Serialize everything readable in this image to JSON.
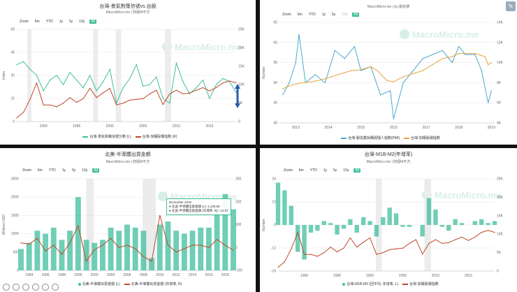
{
  "colors": {
    "green": "#3fbe9c",
    "red": "#c0482a",
    "blue": "#4aa8cf",
    "orange": "#e8a23c",
    "grid": "#e6e6e6",
    "axis": "#888"
  },
  "chart_data": [
    {
      "type": "line",
      "title": "台灣-景氣對策信號vs.台股",
      "subtitle": "MacroMicro.me | 財經M平方",
      "zoom": [
        "Zoom",
        "6m",
        "YTD",
        "1y",
        "5y",
        "10y",
        "All"
      ],
      "zoom_selected": "All",
      "ylabel_left": "Index",
      "ylabel_right": "",
      "ylim_left": [
        0,
        60
      ],
      "ylim_right": [
        0,
        25000
      ],
      "left_ticks": [
        "60",
        "45",
        "30",
        "15",
        "0"
      ],
      "right_ticks": [
        "25K",
        "20K",
        "15K",
        "10K",
        "5K",
        "0"
      ],
      "xticks": [
        "1990",
        "1995",
        "2000",
        "2005",
        "2010",
        "2015"
      ],
      "x_range": [
        1986,
        2019
      ],
      "shaded": [
        [
          1987.6,
          1988.2
        ],
        [
          1997.5,
          1998.2
        ],
        [
          2000.9,
          2001.7
        ],
        [
          2008.3,
          2009.2
        ]
      ],
      "series": [
        {
          "name": "台灣-景氣對策信號分數 (L)",
          "color": "green",
          "axis": "left",
          "x": [
            1986,
            1987,
            1988,
            1989,
            1990,
            1991,
            1992,
            1993,
            1994,
            1995,
            1996,
            1997,
            1998,
            1999,
            2000,
            2001,
            2002,
            2003,
            2004,
            2005,
            2006,
            2007,
            2008,
            2009,
            2010,
            2011,
            2012,
            2013,
            2014,
            2015,
            2016,
            2017,
            2018,
            2019
          ],
          "values": [
            37,
            39,
            34,
            30,
            20,
            27,
            30,
            24,
            32,
            27,
            22,
            30,
            20,
            26,
            34,
            12,
            22,
            28,
            37,
            23,
            24,
            29,
            15,
            12,
            38,
            26,
            18,
            22,
            27,
            15,
            24,
            28,
            26,
            19
          ]
        },
        {
          "name": "台灣-加權股價指數 (R)",
          "color": "red",
          "axis": "right",
          "x": [
            1986,
            1987,
            1988,
            1989,
            1990,
            1991,
            1992,
            1993,
            1994,
            1995,
            1996,
            1997,
            1998,
            1999,
            2000,
            2001,
            2002,
            2003,
            2004,
            2005,
            2006,
            2007,
            2008,
            2009,
            2010,
            2011,
            2012,
            2013,
            2014,
            2015,
            2016,
            2017,
            2018,
            2019
          ],
          "values": [
            1000,
            2500,
            6000,
            10500,
            4500,
            4500,
            4000,
            5000,
            6500,
            5200,
            6200,
            9000,
            6500,
            7800,
            9000,
            4500,
            5000,
            5800,
            6000,
            6200,
            7500,
            8500,
            4600,
            7500,
            8500,
            7500,
            7700,
            8500,
            9200,
            8300,
            9200,
            10500,
            11000,
            10500
          ]
        }
      ],
      "legend": [
        "台灣-景氣對策信號分數 (L)",
        "台灣-加權股價指數 (R)"
      ]
    },
    {
      "type": "line",
      "title": "",
      "subtitle": "MacroMicro.me | by 劉宗德",
      "zoom": [
        "Zoom",
        "6m",
        "YTD",
        "1y",
        "5y",
        "10y",
        "All"
      ],
      "zoom_selected": "All",
      "ylabel_left": "Number",
      "ylim_left": [
        40,
        65
      ],
      "ylim_right": [
        4000,
        14000
      ],
      "left_ticks": [
        "65",
        "60",
        "55",
        "50",
        "45",
        "40"
      ],
      "right_ticks": [
        "14K",
        "12K",
        "10K",
        "8K",
        "6K",
        "4K"
      ],
      "xticks": [
        "2013",
        "2014",
        "2015",
        "2016",
        "2017",
        "2018",
        "2019"
      ],
      "x_range": [
        2012.5,
        2019.1
      ],
      "series": [
        {
          "name": "台灣-製造業採購經理人指數(PMI)",
          "color": "blue",
          "axis": "left",
          "x": [
            2012.6,
            2012.8,
            2013.0,
            2013.1,
            2013.3,
            2013.6,
            2013.9,
            2014.2,
            2014.5,
            2014.8,
            2015.0,
            2015.3,
            2015.6,
            2015.9,
            2016.0,
            2016.3,
            2016.6,
            2016.9,
            2017.2,
            2017.5,
            2017.8,
            2018.0,
            2018.2,
            2018.5,
            2018.7,
            2018.9,
            2019.0
          ],
          "values": [
            47,
            50,
            55,
            62,
            50,
            52,
            50,
            58,
            56,
            59,
            53,
            54,
            47,
            48,
            41,
            50,
            53,
            56,
            57,
            58,
            55,
            59,
            57,
            57,
            53,
            45,
            48
          ]
        },
        {
          "name": "台灣-加權股價指數",
          "color": "orange",
          "axis": "right",
          "x": [
            2012.6,
            2012.9,
            2013.2,
            2013.5,
            2013.8,
            2014.1,
            2014.4,
            2014.7,
            2015.0,
            2015.3,
            2015.5,
            2015.8,
            2016.0,
            2016.3,
            2016.6,
            2016.9,
            2017.2,
            2017.5,
            2017.8,
            2018.0,
            2018.2,
            2018.5,
            2018.8,
            2018.9,
            2019.0
          ],
          "values": [
            7400,
            7800,
            8000,
            8100,
            8300,
            8600,
            8900,
            9200,
            9300,
            9600,
            9200,
            8200,
            8100,
            8600,
            8900,
            9200,
            9800,
            10400,
            10600,
            10900,
            10900,
            10900,
            10600,
            9800,
            10000
          ]
        }
      ],
      "legend": [
        "台灣-製造業採購經理人指數(PMI)",
        "台灣-加權股價指數"
      ]
    },
    {
      "type": "bar",
      "title": "北美-半導體出貨金額",
      "subtitle": "MacroMicro.me | 財經M平方",
      "zoom": [
        "Zoom",
        "6m",
        "YTD",
        "1y",
        "5y",
        "10y",
        "All"
      ],
      "zoom_selected": "All",
      "ylabel_left": "Millions USD",
      "ylim_left": [
        0,
        3000
      ],
      "ylim_right": [
        -100,
        300
      ],
      "left_ticks": [
        "3000",
        "2000",
        "1500",
        "1000",
        "500",
        "0"
      ],
      "right_ticks": [
        "300",
        "200",
        "100",
        "0",
        "-100"
      ],
      "xticks": [
        "1994",
        "1996",
        "1998",
        "2000",
        "2002",
        "2004",
        "2006",
        "2008",
        "2010",
        "2012",
        "2014",
        "2016",
        "2018"
      ],
      "x_range": [
        1993,
        2019
      ],
      "shaded": [
        [
          2001.0,
          2001.9
        ],
        [
          2007.9,
          2009.5
        ]
      ],
      "series": [
        {
          "name": "北美-半導體出貨金額 (L)",
          "color": "green",
          "axis": "left",
          "x": [
            1993,
            1994,
            1995,
            1996,
            1997,
            1998,
            1999,
            2000,
            2001,
            2002,
            2003,
            2004,
            2005,
            2006,
            2007,
            2008,
            2009,
            2010,
            2011,
            2012,
            2013,
            2014,
            2015,
            2016,
            2017,
            2018,
            2019
          ],
          "values": [
            700,
            900,
            1300,
            1200,
            1400,
            1000,
            1300,
            2400,
            1000,
            900,
            1000,
            1400,
            1300,
            1500,
            1400,
            1300,
            400,
            1500,
            1600,
            1300,
            1200,
            1300,
            1400,
            1400,
            2000,
            2500,
            2000
          ]
        },
        {
          "name": "北美-半導體出貨金額 (年增率, R)",
          "color": "red",
          "axis": "right",
          "x": [
            1993,
            1994,
            1995,
            1996,
            1997,
            1998,
            1999,
            2000,
            2001,
            2002,
            2003,
            2004,
            2005,
            2006,
            2007,
            2008,
            2009,
            2010,
            2011,
            2012,
            2013,
            2014,
            2015,
            2016,
            2017,
            2018,
            2019
          ],
          "values": [
            20,
            15,
            40,
            -15,
            10,
            -30,
            20,
            95,
            -60,
            -10,
            10,
            40,
            0,
            10,
            -5,
            -40,
            -60,
            140,
            10,
            -20,
            -5,
            10,
            10,
            0,
            35,
            10,
            -12
          ]
        }
      ],
      "tooltip": {
        "date": "December 2018",
        "line1": "● 北美-半導體出貨金額 (L): 2,108.80",
        "line2": "● 北美-半導體出貨金額 (年增率, R): -12.07"
      },
      "legend": [
        "北美-半導體出貨金額 (L)",
        "北美-半導體出貨金額 (年增率, R)"
      ]
    },
    {
      "type": "bar",
      "title": "台灣-M1B-M2(年增率)",
      "subtitle": "MacroMicro.me | 財經M平方",
      "zoom": [
        "Zoom",
        "6m",
        "YTD",
        "1y",
        "5y",
        "10y",
        "All"
      ],
      "zoom_selected": "All",
      "ylabel_left": "Number",
      "ylim_left": [
        -24,
        24
      ],
      "ylim_right": [
        0,
        25000
      ],
      "left_ticks": [
        "24",
        "12",
        "0",
        "-12",
        "-24"
      ],
      "right_ticks": [
        "25K",
        "20K",
        "15K",
        "10K",
        "5K",
        "0"
      ],
      "xticks": [
        "1990",
        "1995",
        "2000",
        "2005",
        "2010",
        "2015"
      ],
      "x_range": [
        1986,
        2019
      ],
      "shaded": [
        [
          2000.9,
          2001.8
        ],
        [
          2008.3,
          2009.3
        ]
      ],
      "series": [
        {
          "name": "台灣-M1B-M2 (回平均, 年增率, L)",
          "color": "green",
          "axis": "left",
          "x": [
            1986,
            1987,
            1988,
            1989,
            1990,
            1991,
            1992,
            1993,
            1994,
            1995,
            1996,
            1997,
            1998,
            1999,
            2000,
            2001,
            2002,
            2003,
            2004,
            2005,
            2006,
            2007,
            2008,
            2009,
            2010,
            2011,
            2012,
            2013,
            2014,
            2015,
            2016,
            2017,
            2018,
            2019
          ],
          "values": [
            22,
            18,
            10,
            -14,
            -18,
            -4,
            -3,
            2,
            1,
            -5,
            -2,
            3,
            -4,
            4,
            2,
            -6,
            4,
            9,
            6,
            -1,
            -1,
            0,
            -6,
            14,
            8,
            -1,
            -3,
            3,
            1,
            0,
            2,
            3,
            1,
            2
          ]
        },
        {
          "name": "台灣-加權股價指數",
          "color": "red",
          "axis": "right",
          "x": [
            1986,
            1987,
            1988,
            1989,
            1990,
            1991,
            1992,
            1993,
            1994,
            1995,
            1996,
            1997,
            1998,
            1999,
            2000,
            2001,
            2002,
            2003,
            2004,
            2005,
            2006,
            2007,
            2008,
            2009,
            2010,
            2011,
            2012,
            2013,
            2014,
            2015,
            2016,
            2017,
            2018,
            2019
          ],
          "values": [
            1000,
            2500,
            6000,
            10500,
            4500,
            4500,
            4000,
            5000,
            6500,
            5200,
            6200,
            9000,
            6500,
            7800,
            9000,
            4500,
            5000,
            5800,
            6000,
            6200,
            7500,
            8500,
            4600,
            7500,
            8500,
            7500,
            7700,
            8500,
            9200,
            8300,
            9200,
            10500,
            11000,
            10500
          ]
        }
      ],
      "legend": [
        "台灣-M1B-M2 (回平均, 年增率, L)",
        "台灣-加權股價指數"
      ]
    }
  ],
  "watermark": "MacroMicro.me",
  "edit_icon": "✎"
}
